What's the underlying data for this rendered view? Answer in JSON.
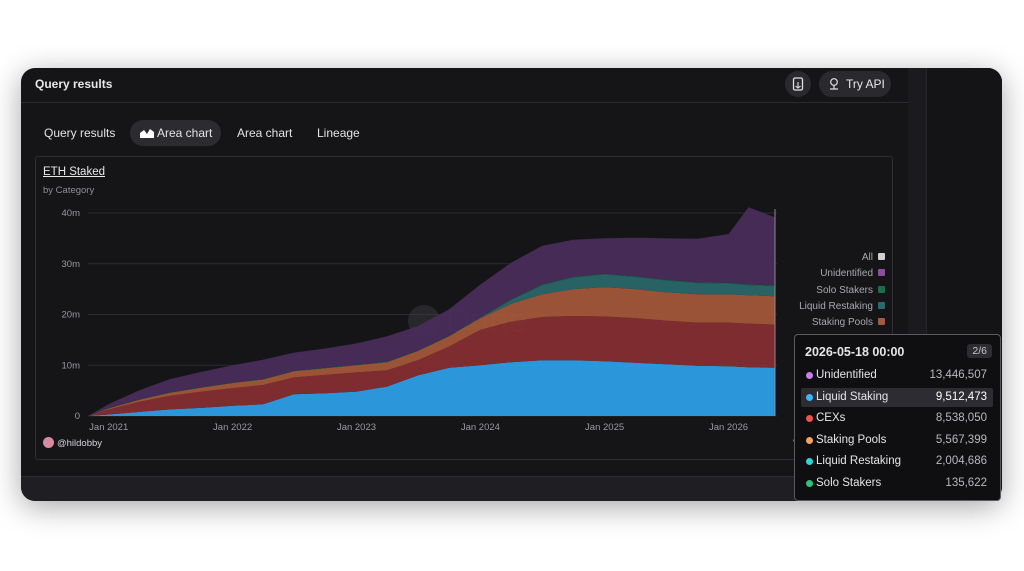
{
  "header": {
    "title": "Query results",
    "api_label": "Try API"
  },
  "tabs": [
    {
      "label": "Query results",
      "active": false
    },
    {
      "label": "Area chart",
      "active": true
    },
    {
      "label": "Area chart",
      "active": false
    },
    {
      "label": "Lineage",
      "active": false
    }
  ],
  "author": "@hildobby",
  "watermark": "Dune",
  "legend": [
    {
      "label": "All",
      "color": "#d0d0d0"
    },
    {
      "label": "Unidentified",
      "color": "#8a4f9e"
    },
    {
      "label": "Solo Stakers",
      "color": "#1e6a4c"
    },
    {
      "label": "Liquid Restaking",
      "color": "#2a6a6e"
    },
    {
      "label": "Staking Pools",
      "color": "#a05a44"
    }
  ],
  "tooltip": {
    "date": "2026-05-18 00:00",
    "page": "2/6",
    "rows": [
      {
        "label": "Unidentified",
        "value": "13,446,507",
        "color": "#c77dea",
        "highlight": false
      },
      {
        "label": "Liquid Staking",
        "value": "9,512,473",
        "color": "#38b6ff",
        "highlight": true
      },
      {
        "label": "CEXs",
        "value": "8,538,050",
        "color": "#ef5350",
        "highlight": false
      },
      {
        "label": "Staking Pools",
        "value": "5,567,399",
        "color": "#f4a261",
        "highlight": false
      },
      {
        "label": "Liquid Restaking",
        "value": "2,004,686",
        "color": "#2fd6d6",
        "highlight": false
      },
      {
        "label": "Solo Stakers",
        "value": "135,622",
        "color": "#2ec27e",
        "highlight": false
      }
    ]
  },
  "chart_data": {
    "type": "area",
    "title": "ETH Staked",
    "subtitle": "by Category",
    "stacked": true,
    "x_tick_labels": [
      "Jan 2021",
      "Jan 2022",
      "Jan 2023",
      "Jan 2024",
      "Jan 2025",
      "Jan 2026"
    ],
    "y_tick_labels": [
      "0",
      "10m",
      "20m",
      "30m",
      "40m"
    ],
    "ylim": [
      0,
      40000000
    ],
    "x": [
      "2020-11-01",
      "2021-01-01",
      "2021-04-01",
      "2021-07-01",
      "2021-10-01",
      "2022-01-01",
      "2022-04-01",
      "2022-07-01",
      "2022-10-01",
      "2023-01-01",
      "2023-04-01",
      "2023-07-01",
      "2023-10-01",
      "2024-01-01",
      "2024-04-01",
      "2024-07-01",
      "2024-10-01",
      "2025-01-01",
      "2025-04-01",
      "2025-07-01",
      "2025-10-01",
      "2026-01-01",
      "2026-03-01",
      "2026-05-18"
    ],
    "series": [
      {
        "name": "Liquid Staking",
        "color": "#2fa4f0",
        "values": [
          0,
          0.3,
          0.8,
          1.3,
          1.6,
          2.0,
          2.3,
          4.3,
          4.5,
          4.8,
          5.8,
          8.0,
          9.5,
          10.0,
          10.6,
          11.0,
          11.0,
          10.8,
          10.5,
          10.2,
          9.9,
          9.8,
          9.6,
          9.5
        ]
      },
      {
        "name": "CEXs",
        "color": "#8a2f33",
        "values": [
          0,
          1.0,
          2.0,
          2.7,
          3.2,
          3.5,
          3.8,
          3.3,
          3.6,
          3.8,
          3.2,
          3.0,
          4.2,
          7.0,
          8.0,
          8.5,
          8.7,
          8.8,
          8.8,
          8.6,
          8.5,
          8.6,
          8.6,
          8.5
        ]
      },
      {
        "name": "Staking Pools",
        "color": "#a85a3a",
        "values": [
          0,
          0.2,
          0.4,
          0.6,
          0.8,
          1.0,
          1.1,
          1.2,
          1.3,
          1.4,
          1.6,
          1.8,
          2.0,
          2.3,
          3.5,
          4.5,
          5.3,
          5.8,
          5.7,
          5.6,
          5.6,
          5.6,
          5.6,
          5.6
        ]
      },
      {
        "name": "Liquid Restaking",
        "color": "#2a6a6e",
        "values": [
          0,
          0,
          0,
          0,
          0,
          0,
          0,
          0,
          0,
          0,
          0,
          0,
          0,
          0,
          0.8,
          1.8,
          2.3,
          2.5,
          2.4,
          2.3,
          2.2,
          2.1,
          2.0,
          2.0
        ]
      },
      {
        "name": "Solo Stakers",
        "color": "#1e6a4c",
        "values": [
          0,
          0.05,
          0.06,
          0.07,
          0.08,
          0.09,
          0.1,
          0.1,
          0.1,
          0.1,
          0.11,
          0.11,
          0.12,
          0.12,
          0.12,
          0.13,
          0.13,
          0.13,
          0.13,
          0.13,
          0.13,
          0.14,
          0.14,
          0.14
        ]
      },
      {
        "name": "Unidentified",
        "color": "#4a2e5c",
        "values": [
          0,
          0.8,
          1.8,
          2.6,
          3.0,
          3.4,
          3.8,
          3.6,
          3.8,
          4.2,
          5.0,
          4.8,
          5.2,
          6.5,
          7.2,
          7.6,
          7.3,
          7.0,
          7.6,
          8.2,
          8.6,
          9.6,
          15.2,
          13.4
        ]
      }
    ],
    "y_unit": "millions of ETH",
    "legend_position": "right"
  }
}
